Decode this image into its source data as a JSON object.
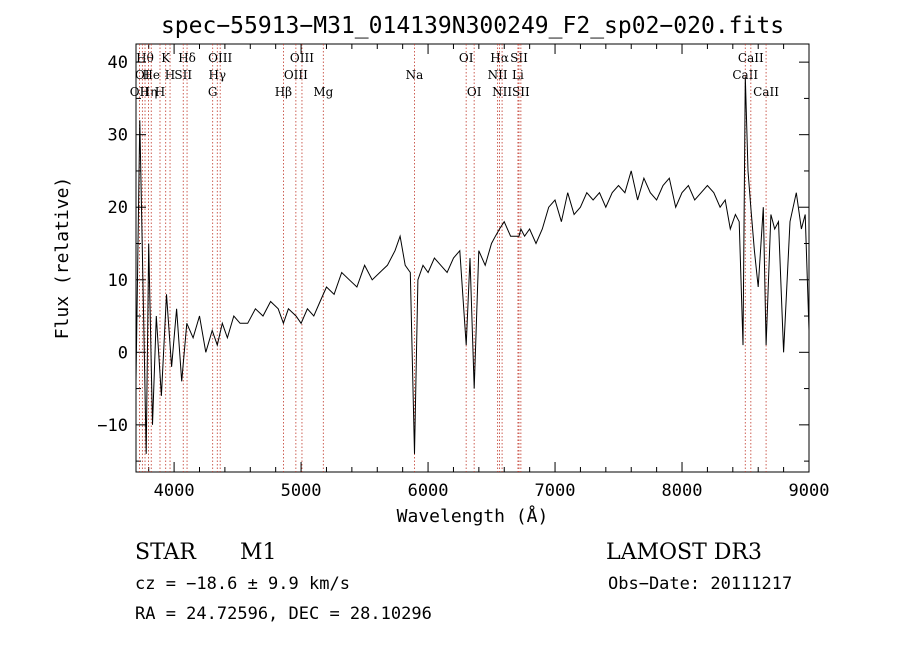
{
  "chart_data": {
    "type": "line",
    "title": "spec−55913−M31_014139N300249_F2_sp02−020.fits",
    "xlabel": "Wavelength (Å)",
    "ylabel": "Flux (relative)",
    "xlim": [
      3700,
      9000
    ],
    "ylim": [
      -16.5,
      42.5
    ],
    "x_ticks": [
      4000,
      5000,
      6000,
      7000,
      8000,
      9000
    ],
    "y_ticks": [
      -10,
      0,
      10,
      20,
      30,
      40
    ],
    "grid": false,
    "line_color": "#000000",
    "marker_line_color": "#c0392b",
    "series": [
      {
        "x": [
          3700,
          3730,
          3760,
          3780,
          3800,
          3830,
          3860,
          3900,
          3940,
          3980,
          4020,
          4060,
          4100,
          4150,
          4200,
          4250,
          4300,
          4340,
          4380,
          4420,
          4470,
          4520,
          4580,
          4640,
          4700,
          4760,
          4820,
          4861,
          4900,
          4960,
          5000,
          5050,
          5100,
          5150,
          5200,
          5260,
          5320,
          5380,
          5440,
          5500,
          5560,
          5620,
          5680,
          5740,
          5780,
          5820,
          5860,
          5893,
          5920,
          5960,
          6000,
          6050,
          6100,
          6150,
          6200,
          6250,
          6300,
          6330,
          6363,
          6400,
          6450,
          6500,
          6530,
          6563,
          6600,
          6650,
          6700,
          6716,
          6731,
          6760,
          6800,
          6850,
          6900,
          6950,
          7000,
          7050,
          7100,
          7150,
          7200,
          7250,
          7300,
          7350,
          7400,
          7450,
          7500,
          7550,
          7600,
          7650,
          7700,
          7750,
          7800,
          7850,
          7900,
          7950,
          8000,
          8050,
          8100,
          8150,
          8200,
          8250,
          8300,
          8340,
          8380,
          8420,
          8450,
          8480,
          8498,
          8520,
          8542,
          8570,
          8600,
          8640,
          8662,
          8700,
          8730,
          8760,
          8800,
          8850,
          8900,
          8940,
          8970,
          9000
        ],
        "y": [
          -4,
          32,
          5,
          -14,
          15,
          -10,
          5,
          -6,
          8,
          -2,
          6,
          -4,
          4,
          2,
          5,
          0,
          3,
          1,
          4,
          2,
          5,
          4,
          4,
          6,
          5,
          7,
          6,
          4,
          6,
          5,
          4,
          6,
          5,
          7,
          9,
          8,
          11,
          10,
          9,
          12,
          10,
          11,
          12,
          14,
          16,
          12,
          11,
          -14,
          10,
          12,
          11,
          13,
          12,
          11,
          13,
          14,
          1,
          13,
          -5,
          14,
          12,
          15,
          16,
          17,
          18,
          16,
          16,
          16,
          17,
          16,
          17,
          15,
          17,
          20,
          21,
          18,
          22,
          19,
          20,
          22,
          21,
          22,
          20,
          22,
          23,
          22,
          25,
          21,
          24,
          22,
          21,
          23,
          24,
          20,
          22,
          23,
          21,
          22,
          23,
          22,
          20,
          21,
          17,
          19,
          18,
          1,
          38,
          25,
          20,
          14,
          9,
          20,
          1,
          19,
          17,
          18,
          0,
          18,
          22,
          17,
          19,
          3
        ]
      }
    ],
    "line_markers": [
      {
        "x": 3727,
        "labels": [
          "OII"
        ],
        "row": 2
      },
      {
        "x": 3750,
        "labels": [
          "OI"
        ],
        "row": 1
      },
      {
        "x": 3771,
        "labels": [
          "Hθ"
        ],
        "row": 0
      },
      {
        "x": 3798,
        "labels": [
          "Hη"
        ],
        "row": 2
      },
      {
        "x": 3820,
        "labels": [
          "He"
        ],
        "row": 1
      },
      {
        "x": 3889,
        "labels": [
          "H"
        ],
        "row": 2
      },
      {
        "x": 3934,
        "labels": [
          "K"
        ],
        "row": 0
      },
      {
        "x": 3968,
        "labels": [
          "H"
        ],
        "row": 1
      },
      {
        "x": 4072,
        "labels": [
          "SII"
        ],
        "row": 1
      },
      {
        "x": 4102,
        "labels": [
          "Hδ"
        ],
        "row": 0
      },
      {
        "x": 4304,
        "labels": [
          "G"
        ],
        "row": 2
      },
      {
        "x": 4340,
        "labels": [
          "Hγ"
        ],
        "row": 1
      },
      {
        "x": 4363,
        "labels": [
          "OIII"
        ],
        "row": 0
      },
      {
        "x": 4861,
        "labels": [
          "Hβ"
        ],
        "row": 2
      },
      {
        "x": 4959,
        "labels": [
          "OIII"
        ],
        "row": 1
      },
      {
        "x": 5007,
        "labels": [
          "OIII"
        ],
        "row": 0
      },
      {
        "x": 5175,
        "labels": [
          "Mg"
        ],
        "row": 2
      },
      {
        "x": 5893,
        "labels": [
          "Na"
        ],
        "row": 1
      },
      {
        "x": 6300,
        "labels": [
          "OI"
        ],
        "row": 0
      },
      {
        "x": 6363,
        "labels": [
          "OI"
        ],
        "row": 2
      },
      {
        "x": 6548,
        "labels": [
          "NII"
        ],
        "row": 1
      },
      {
        "x": 6563,
        "labels": [
          "Hα"
        ],
        "row": 0
      },
      {
        "x": 6583,
        "labels": [
          "NII"
        ],
        "row": 2
      },
      {
        "x": 6708,
        "labels": [
          "Li"
        ],
        "row": 1
      },
      {
        "x": 6716,
        "labels": [
          "SII"
        ],
        "row": 0
      },
      {
        "x": 6731,
        "labels": [
          "SII"
        ],
        "row": 2
      },
      {
        "x": 8498,
        "labels": [
          "CaII"
        ],
        "row": 1
      },
      {
        "x": 8542,
        "labels": [
          "CaII"
        ],
        "row": 0
      },
      {
        "x": 8662,
        "labels": [
          "CaII"
        ],
        "row": 2
      }
    ]
  },
  "info": {
    "object_class": "STAR",
    "subclass": "M1",
    "survey": "LAMOST  DR3",
    "cz": "cz = −18.6 ± 9.9 km/s",
    "obs_date": "Obs−Date: 20111217",
    "coords": "RA =  24.72596, DEC =  28.10296"
  }
}
